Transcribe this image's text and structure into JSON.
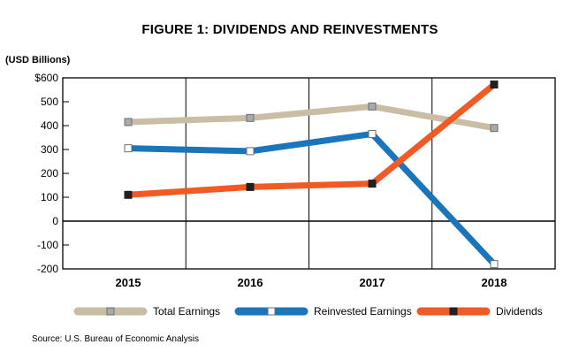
{
  "chart_data": {
    "type": "line",
    "title": "FIGURE 1: DIVIDENDS AND REINVESTMENTS",
    "unit_label": "(USD Billions)",
    "categories": [
      "2015",
      "2016",
      "2017",
      "2018"
    ],
    "y_ticks": [
      600,
      500,
      400,
      300,
      200,
      100,
      0,
      -100,
      -200
    ],
    "y_tick_labels": [
      "$600",
      "500",
      "400",
      "300",
      "200",
      "100",
      "0",
      "-100",
      "-200"
    ],
    "ylim": [
      -200,
      600
    ],
    "grid": "vertical",
    "legend_position": "bottom",
    "series": [
      {
        "name": "Total Earnings",
        "color": "#c9bda5",
        "values": [
          415,
          432,
          480,
          390
        ]
      },
      {
        "name": "Reinvested Earnings",
        "color": "#1b75bb",
        "values": [
          305,
          293,
          365,
          -180
        ]
      },
      {
        "name": "Dividends",
        "color": "#f15a24",
        "values": [
          110,
          143,
          157,
          572
        ]
      }
    ],
    "source": "Source: U.S. Bureau of Economic Analysis"
  }
}
